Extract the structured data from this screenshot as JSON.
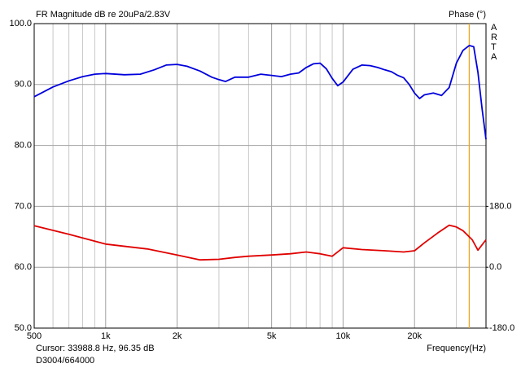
{
  "chart_data": {
    "type": "line",
    "title": "FR Magnitude dB re 20uPa/2.83V",
    "y2_label": "Phase (°)",
    "brand": "ARTA",
    "x_label": "Frequency(Hz)",
    "cursor": {
      "label": "Cursor: 33988.8 Hz, 96.35 dB",
      "x": 33988.8,
      "color": "#e8a317"
    },
    "footer": "D3004/664000",
    "log_x": true,
    "grid": true,
    "xlim": [
      500,
      40000
    ],
    "xticks": [
      500,
      {
        "value": 1000,
        "label": "1k"
      },
      {
        "value": 2000,
        "label": "2k"
      },
      {
        "value": 5000,
        "label": "5k"
      },
      {
        "value": 10000,
        "label": "10k"
      },
      {
        "value": 20000,
        "label": "20k"
      }
    ],
    "x_minor_ticks": [
      600,
      700,
      800,
      900,
      3000,
      4000,
      6000,
      7000,
      8000,
      9000,
      30000,
      40000
    ],
    "ylim": [
      50,
      100
    ],
    "yticks": [
      {
        "value": 50,
        "label": "50.0"
      },
      {
        "value": 60,
        "label": "60.0"
      },
      {
        "value": 70,
        "label": "70.0"
      },
      {
        "value": 80,
        "label": "80.0"
      },
      {
        "value": 90,
        "label": "90.0"
      },
      {
        "value": 100,
        "label": "100.0"
      }
    ],
    "y2lim": [
      -180,
      720
    ],
    "y2ticks": [
      {
        "value": -180,
        "label": "-180.0"
      },
      {
        "value": 0,
        "label": "0.0"
      },
      {
        "value": 180,
        "label": "180.0"
      }
    ],
    "series": [
      {
        "color": "#0000dd",
        "x": [
          500,
          600,
          700,
          800,
          900,
          1000,
          1200,
          1400,
          1600,
          1800,
          2000,
          2200,
          2500,
          2800,
          3000,
          3200,
          3500,
          4000,
          4500,
          5000,
          5500,
          6000,
          6500,
          7000,
          7500,
          8000,
          8500,
          9000,
          9500,
          10000,
          11000,
          12000,
          13000,
          14000,
          15000,
          16000,
          17000,
          18000,
          19000,
          20000,
          21000,
          22000,
          24000,
          26000,
          28000,
          30000,
          32000,
          34000,
          35500,
          37000,
          38500,
          40000
        ],
        "values": [
          88.0,
          89.6,
          90.6,
          91.3,
          91.7,
          91.8,
          91.6,
          91.7,
          92.4,
          93.2,
          93.3,
          93.0,
          92.2,
          91.2,
          90.8,
          90.5,
          91.2,
          91.2,
          91.7,
          91.5,
          91.3,
          91.7,
          91.9,
          92.8,
          93.4,
          93.5,
          92.6,
          91.0,
          89.8,
          90.4,
          92.5,
          93.2,
          93.1,
          92.8,
          92.4,
          92.1,
          91.5,
          91.1,
          90.0,
          88.6,
          87.7,
          88.3,
          88.6,
          88.2,
          89.5,
          93.5,
          95.6,
          96.4,
          96.2,
          92.0,
          86.0,
          81.0
        ]
      },
      {
        "color": "#e00000",
        "x": [
          500,
          700,
          1000,
          1500,
          2000,
          2500,
          3000,
          3500,
          4000,
          5000,
          6000,
          7000,
          8000,
          9000,
          10000,
          12000,
          15000,
          18000,
          20000,
          22000,
          25000,
          28000,
          30000,
          32000,
          35000,
          37000,
          40000
        ],
        "values": [
          66.8,
          65.4,
          63.8,
          63.0,
          62.0,
          61.2,
          61.3,
          61.6,
          61.8,
          62.0,
          62.2,
          62.5,
          62.2,
          61.8,
          63.2,
          62.9,
          62.7,
          62.5,
          62.7,
          64.0,
          65.6,
          66.9,
          66.6,
          66.0,
          64.5,
          62.8,
          64.5
        ]
      }
    ]
  }
}
